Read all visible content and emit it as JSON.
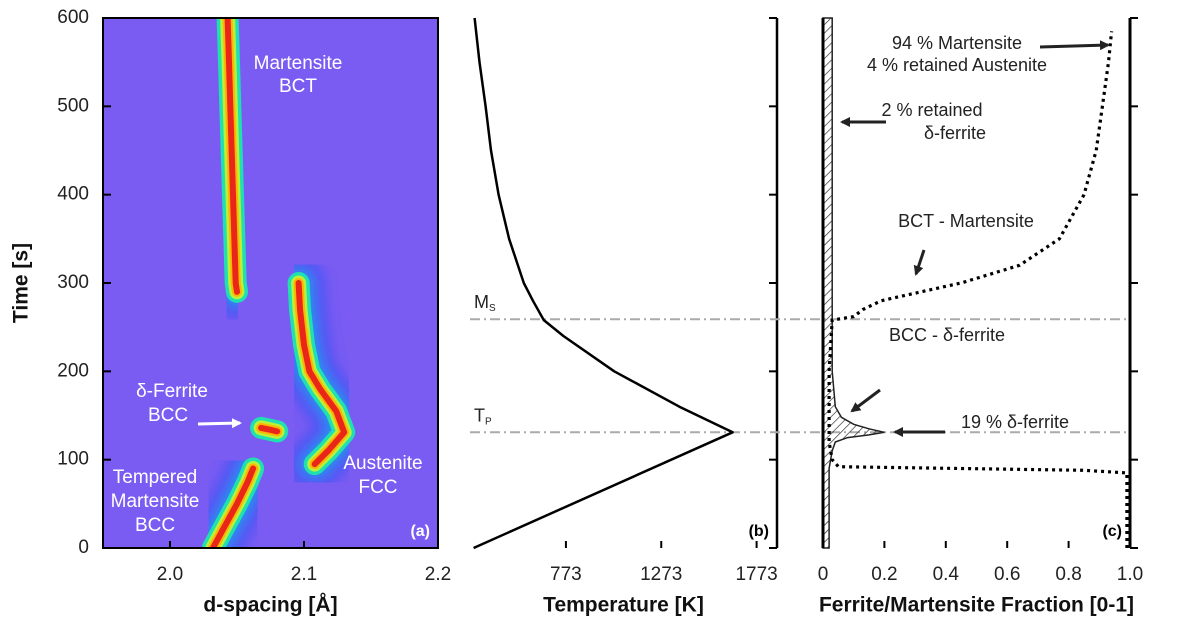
{
  "chart_data": [
    {
      "type": "heatmap",
      "xlabel": "d-spacing [Å]",
      "ylabel": "Time [s]",
      "panel": "(a)",
      "xlim": [
        1.95,
        2.2
      ],
      "ylim": [
        0,
        600
      ],
      "xticks": [
        {
          "value": 2.0,
          "label": "2.0"
        },
        2.1,
        2.2
      ],
      "yticks": [
        0,
        100,
        200,
        300,
        400,
        500,
        600
      ],
      "series": [
        {
          "x": [
            2.05,
            2.049,
            2.047,
            2.045,
            2.044,
            2.043
          ],
          "values": [
            290,
            300,
            400,
            500,
            550,
            600
          ]
        },
        {
          "x": [
            2.032,
            2.041,
            2.05,
            2.058,
            2.062
          ],
          "values": [
            0,
            25,
            50,
            75,
            90
          ]
        },
        {
          "x": [
            2.108,
            2.118,
            2.13,
            2.124,
            2.112,
            2.104,
            2.1,
            2.097,
            2.096
          ],
          "values": [
            95,
            110,
            131,
            155,
            180,
            200,
            230,
            270,
            300
          ]
        },
        {
          "x": [
            2.068,
            2.074,
            2.08
          ],
          "values": [
            136,
            134,
            132
          ]
        }
      ],
      "annotations": [
        [
          "Martensite",
          "BCT"
        ],
        [
          "δ-Ferrite",
          "BCC"
        ],
        [
          "Austenite",
          "FCC"
        ],
        [
          "Tempered",
          "Martensite",
          "BCC"
        ]
      ]
    },
    {
      "type": "line",
      "xlabel": "Temperature [K]",
      "panel": "(b)",
      "xlim": [
        270,
        1880
      ],
      "ylim": [
        0,
        600
      ],
      "xticks": [
        773,
        1273,
        1773
      ],
      "yticks": [
        0,
        100,
        200,
        300,
        400,
        500,
        600
      ],
      "series": [
        {
          "color": "#000000",
          "x": [
            289,
            1647,
            1368,
            1026,
            760,
            657,
            600,
            552,
            475,
            420,
            380,
            352,
            320,
            294
          ],
          "values": [
            0,
            131,
            160,
            200,
            240,
            258,
            280,
            300,
            350,
            400,
            450,
            500,
            550,
            600
          ]
        }
      ],
      "hlines": [
        {
          "value": 259,
          "label": "M",
          "sub": "S"
        },
        {
          "value": 131,
          "label": "T",
          "sub": "P"
        }
      ]
    },
    {
      "type": "fraction",
      "xlabel": "Ferrite/Martensite Fraction [0-1]",
      "panel": "(c)",
      "xlim": [
        0,
        1
      ],
      "ylim": [
        0,
        600
      ],
      "xticks": [
        0,
        0.2,
        0.4,
        0.6,
        0.8,
        {
          "value": 1.0,
          "label": "1.0"
        }
      ],
      "yticks": [
        0,
        100,
        200,
        300,
        400,
        500,
        600
      ],
      "series": [
        {
          "style": "hatch",
          "x": [
            0.02,
            0.02,
            0.03,
            0.04,
            0.08,
            0.15,
            0.2,
            0.15,
            0.1,
            0.06,
            0.04,
            0.03,
            0.03,
            0.03
          ],
          "values": [
            0,
            90,
            110,
            120,
            125,
            128,
            131,
            135,
            140,
            148,
            160,
            200,
            400,
            600
          ]
        },
        {
          "style": "dotted",
          "x": [
            0.99,
            0.99,
            0.85,
            0.05,
            0.03,
            0.02,
            0.02,
            0.03,
            0.1,
            0.13,
            0.19,
            0.32,
            0.45,
            0.64,
            0.77,
            0.85,
            0.89,
            0.91,
            0.93,
            0.94
          ],
          "values": [
            0,
            85,
            88,
            92,
            100,
            120,
            200,
            258,
            262,
            270,
            280,
            290,
            300,
            320,
            350,
            400,
            450,
            500,
            550,
            585
          ]
        }
      ],
      "annotations": [
        [
          "94 % Martensite",
          "4 % retained Austenite"
        ],
        [
          "2 % retained",
          "δ-ferrite"
        ],
        [
          "BCT - Martensite"
        ],
        [
          "BCC - δ-ferrite"
        ],
        [
          "19 % δ-ferrite"
        ]
      ]
    }
  ]
}
